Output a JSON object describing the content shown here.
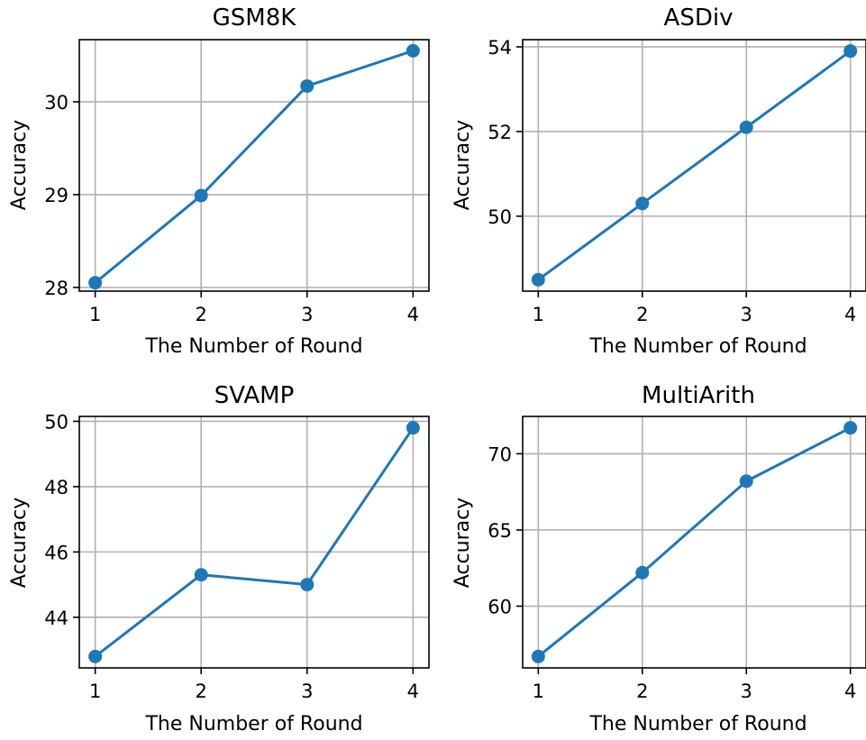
{
  "chart_data": [
    {
      "type": "line",
      "title": "GSM8K",
      "xlabel": "The Number of Round",
      "ylabel": "Accuracy",
      "x": [
        1,
        2,
        3,
        4
      ],
      "values": [
        28.05,
        28.99,
        30.17,
        30.55
      ],
      "xticks": [
        "1",
        "2",
        "3",
        "4"
      ],
      "yticks": [
        28,
        29,
        30
      ],
      "ytick_labels": [
        "28",
        "29",
        "30"
      ],
      "xlim": [
        0.85,
        4.15
      ],
      "ylim": [
        27.96,
        30.67
      ],
      "grid": true,
      "color": "#1f77b4"
    },
    {
      "type": "line",
      "title": "ASDiv",
      "xlabel": "The Number of Round",
      "ylabel": "Accuracy",
      "x": [
        1,
        2,
        3,
        4
      ],
      "values": [
        48.5,
        50.3,
        52.1,
        53.9
      ],
      "xticks": [
        "1",
        "2",
        "3",
        "4"
      ],
      "yticks": [
        50,
        52,
        54
      ],
      "ytick_labels": [
        "50",
        "52",
        "54"
      ],
      "xlim": [
        0.85,
        4.15
      ],
      "ylim": [
        48.23,
        54.17
      ],
      "grid": true,
      "color": "#1f77b4"
    },
    {
      "type": "line",
      "title": "SVAMP",
      "xlabel": "The Number of Round",
      "ylabel": "Accuracy",
      "x": [
        1,
        2,
        3,
        4
      ],
      "values": [
        42.8,
        45.3,
        45.0,
        49.8
      ],
      "xticks": [
        "1",
        "2",
        "3",
        "4"
      ],
      "yticks": [
        44,
        46,
        48,
        50
      ],
      "ytick_labels": [
        "44",
        "46",
        "48",
        "50"
      ],
      "xlim": [
        0.85,
        4.15
      ],
      "ylim": [
        42.45,
        50.15
      ],
      "grid": true,
      "color": "#1f77b4"
    },
    {
      "type": "line",
      "title": "MultiArith",
      "xlabel": "The Number of Round",
      "ylabel": "Accuracy",
      "x": [
        1,
        2,
        3,
        4
      ],
      "values": [
        56.7,
        62.2,
        68.2,
        71.7
      ],
      "xticks": [
        "1",
        "2",
        "3",
        "4"
      ],
      "yticks": [
        60,
        65,
        70
      ],
      "ytick_labels": [
        "60",
        "65",
        "70"
      ],
      "xlim": [
        0.85,
        4.15
      ],
      "ylim": [
        55.95,
        72.45
      ],
      "grid": true,
      "color": "#1f77b4"
    }
  ]
}
